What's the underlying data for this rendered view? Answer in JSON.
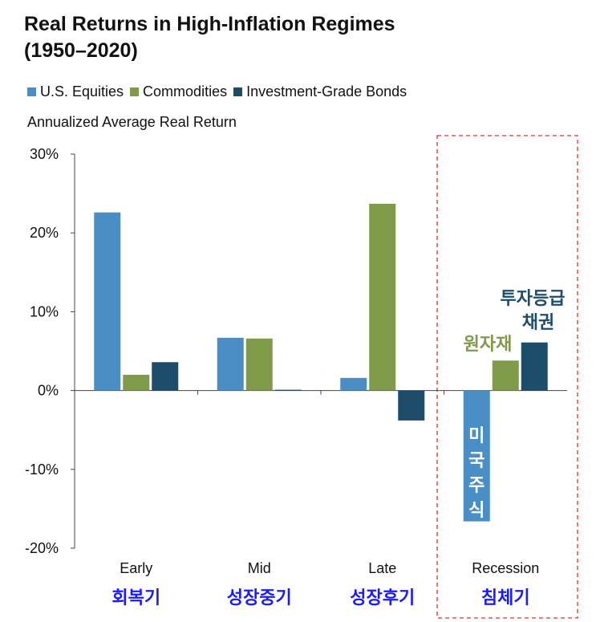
{
  "chart_data": {
    "type": "bar",
    "title_lines": [
      "Real Returns in High-Inflation Regimes",
      "(1950–2020)"
    ],
    "subtitle": "Annualized Average Real Return",
    "categories": [
      "Early",
      "Mid",
      "Late",
      "Recession"
    ],
    "categories_kr": [
      "회복기",
      "성장중기",
      "성장후기",
      "침체기"
    ],
    "series": [
      {
        "name": "U.S. Equities",
        "color": "#4a8ec6",
        "values": [
          22.6,
          6.7,
          1.6,
          -16.6
        ]
      },
      {
        "name": "Commodities",
        "color": "#7f9a48",
        "values": [
          2.0,
          6.6,
          23.7,
          3.8
        ]
      },
      {
        "name": "Investment-Grade Bonds",
        "color": "#1e4d6b",
        "values": [
          3.6,
          0.1,
          -3.8,
          6.1
        ]
      }
    ],
    "ylim": [
      -20,
      30
    ],
    "yticks": [
      -20,
      -10,
      0,
      10,
      20,
      30
    ],
    "ytick_labels": [
      "-20%",
      "-10%",
      "0%",
      "10%",
      "20%",
      "30%"
    ],
    "legend_position": "top-left",
    "highlight_category": "Recession",
    "highlight_color": "#e03030",
    "annotations": {
      "equities": "미국주식",
      "commodities": "원자재",
      "bonds_line1": "투자등급",
      "bonds_line2": "채권",
      "equities_color": "#4a8ec6",
      "commodities_color": "#7f9a48",
      "bonds_color": "#1e4d6b"
    }
  }
}
